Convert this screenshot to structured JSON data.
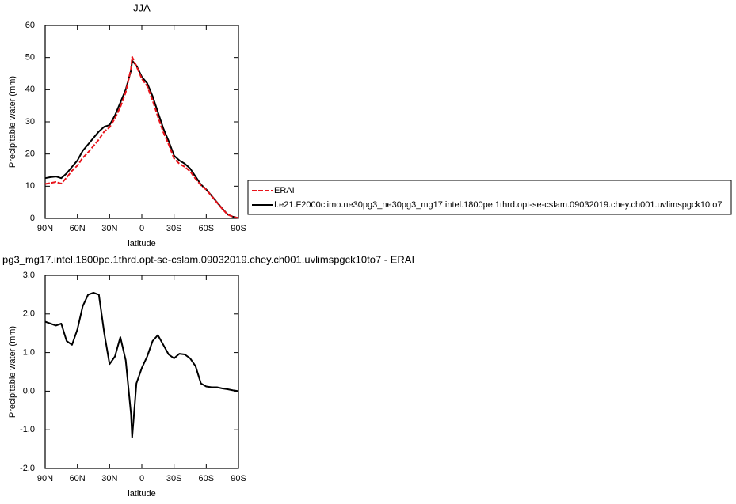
{
  "chart_data": [
    {
      "type": "line",
      "title": "JJA",
      "xlabel": "latitude",
      "ylabel": "Precipitable water (mm)",
      "x": [
        90,
        85,
        80,
        75,
        70,
        65,
        60,
        55,
        50,
        45,
        40,
        35,
        30,
        25,
        20,
        15,
        10,
        9,
        5,
        0,
        -5,
        -10,
        -15,
        -20,
        -25,
        -30,
        -35,
        -40,
        -45,
        -50,
        -55,
        -60,
        -65,
        -70,
        -75,
        -80,
        -85,
        -90
      ],
      "xlim": [
        90,
        -90
      ],
      "xticks": [
        {
          "value": 90,
          "label": "90N"
        },
        {
          "value": 60,
          "label": "60N"
        },
        {
          "value": 30,
          "label": "30N"
        },
        0,
        {
          "value": -30,
          "label": "30S"
        },
        {
          "value": -60,
          "label": "60S"
        },
        {
          "value": -90,
          "label": "90S"
        }
      ],
      "ylim": [
        0,
        60
      ],
      "yticks": [
        0,
        10,
        20,
        30,
        40,
        50,
        60
      ],
      "legend": "right",
      "series": [
        {
          "name": "ERAI",
          "color": "#e8141b",
          "dashed": true,
          "values": [
            10.7,
            11,
            11.3,
            10.8,
            12.7,
            14.8,
            16.4,
            18.8,
            20.5,
            22.5,
            24.5,
            27,
            28.3,
            31.1,
            34.6,
            39.2,
            46.6,
            50.2,
            47.3,
            43.4,
            41.1,
            36.7,
            31.6,
            26.8,
            23,
            18.6,
            17,
            16,
            14.6,
            12.3,
            10.3,
            8.9,
            6.9,
            4.9,
            2.9,
            1.15,
            0.5,
            0.1
          ]
        },
        {
          "name": "f.e21.F2000climo.ne30pg3_ne30pg3_mg17.intel.1800pe.1thrd.opt-se-cslam.09032019.chey.ch001.uvlimspgck10to7",
          "color": "#000000",
          "dashed": false,
          "values": [
            12.5,
            12.8,
            13,
            12.5,
            14,
            16,
            18,
            21,
            23,
            25,
            27,
            28.5,
            29,
            32,
            36,
            40,
            46,
            49,
            47.5,
            44,
            42,
            38,
            33,
            28,
            24,
            19.5,
            18,
            17,
            15.5,
            13,
            10.5,
            9,
            7,
            5,
            3,
            1.2,
            0.5,
            0.1
          ]
        }
      ]
    },
    {
      "type": "line",
      "title": "pg3_mg17.intel.1800pe.1thrd.opt-se-cslam.09032019.chey.ch001.uvlimspgck10to7 - ERAI",
      "xlabel": "latitude",
      "ylabel": "Precipitable water (mm)",
      "x": [
        90,
        85,
        80,
        75,
        70,
        65,
        60,
        55,
        50,
        45,
        40,
        35,
        30,
        25,
        20,
        15,
        10,
        9,
        5,
        0,
        -5,
        -10,
        -15,
        -20,
        -25,
        -30,
        -35,
        -40,
        -45,
        -50,
        -55,
        -60,
        -65,
        -70,
        -75,
        -80,
        -85,
        -90
      ],
      "xlim": [
        90,
        -90
      ],
      "xticks": [
        {
          "value": 90,
          "label": "90N"
        },
        {
          "value": 60,
          "label": "60N"
        },
        {
          "value": 30,
          "label": "30N"
        },
        0,
        {
          "value": -30,
          "label": "30S"
        },
        {
          "value": -60,
          "label": "60S"
        },
        {
          "value": -90,
          "label": "90S"
        }
      ],
      "ylim": [
        -2,
        3
      ],
      "yticks": [
        {
          "value": -2,
          "label": "-2.0"
        },
        {
          "value": -1,
          "label": "-1.0"
        },
        {
          "value": 0,
          "label": "0.0"
        },
        {
          "value": 1,
          "label": "1.0"
        },
        {
          "value": 2,
          "label": "2.0"
        },
        {
          "value": 3,
          "label": "3.0"
        }
      ],
      "color": "#000000",
      "values": [
        1.8,
        1.75,
        1.7,
        1.75,
        1.3,
        1.2,
        1.6,
        2.2,
        2.5,
        2.55,
        2.5,
        1.5,
        0.7,
        0.9,
        1.4,
        0.8,
        -0.6,
        -1.2,
        0.2,
        0.6,
        0.9,
        1.3,
        1.45,
        1.2,
        0.95,
        0.85,
        0.97,
        0.95,
        0.85,
        0.65,
        0.2,
        0.12,
        0.1,
        0.1,
        0.07,
        0.05,
        0.02,
        0
      ]
    }
  ]
}
